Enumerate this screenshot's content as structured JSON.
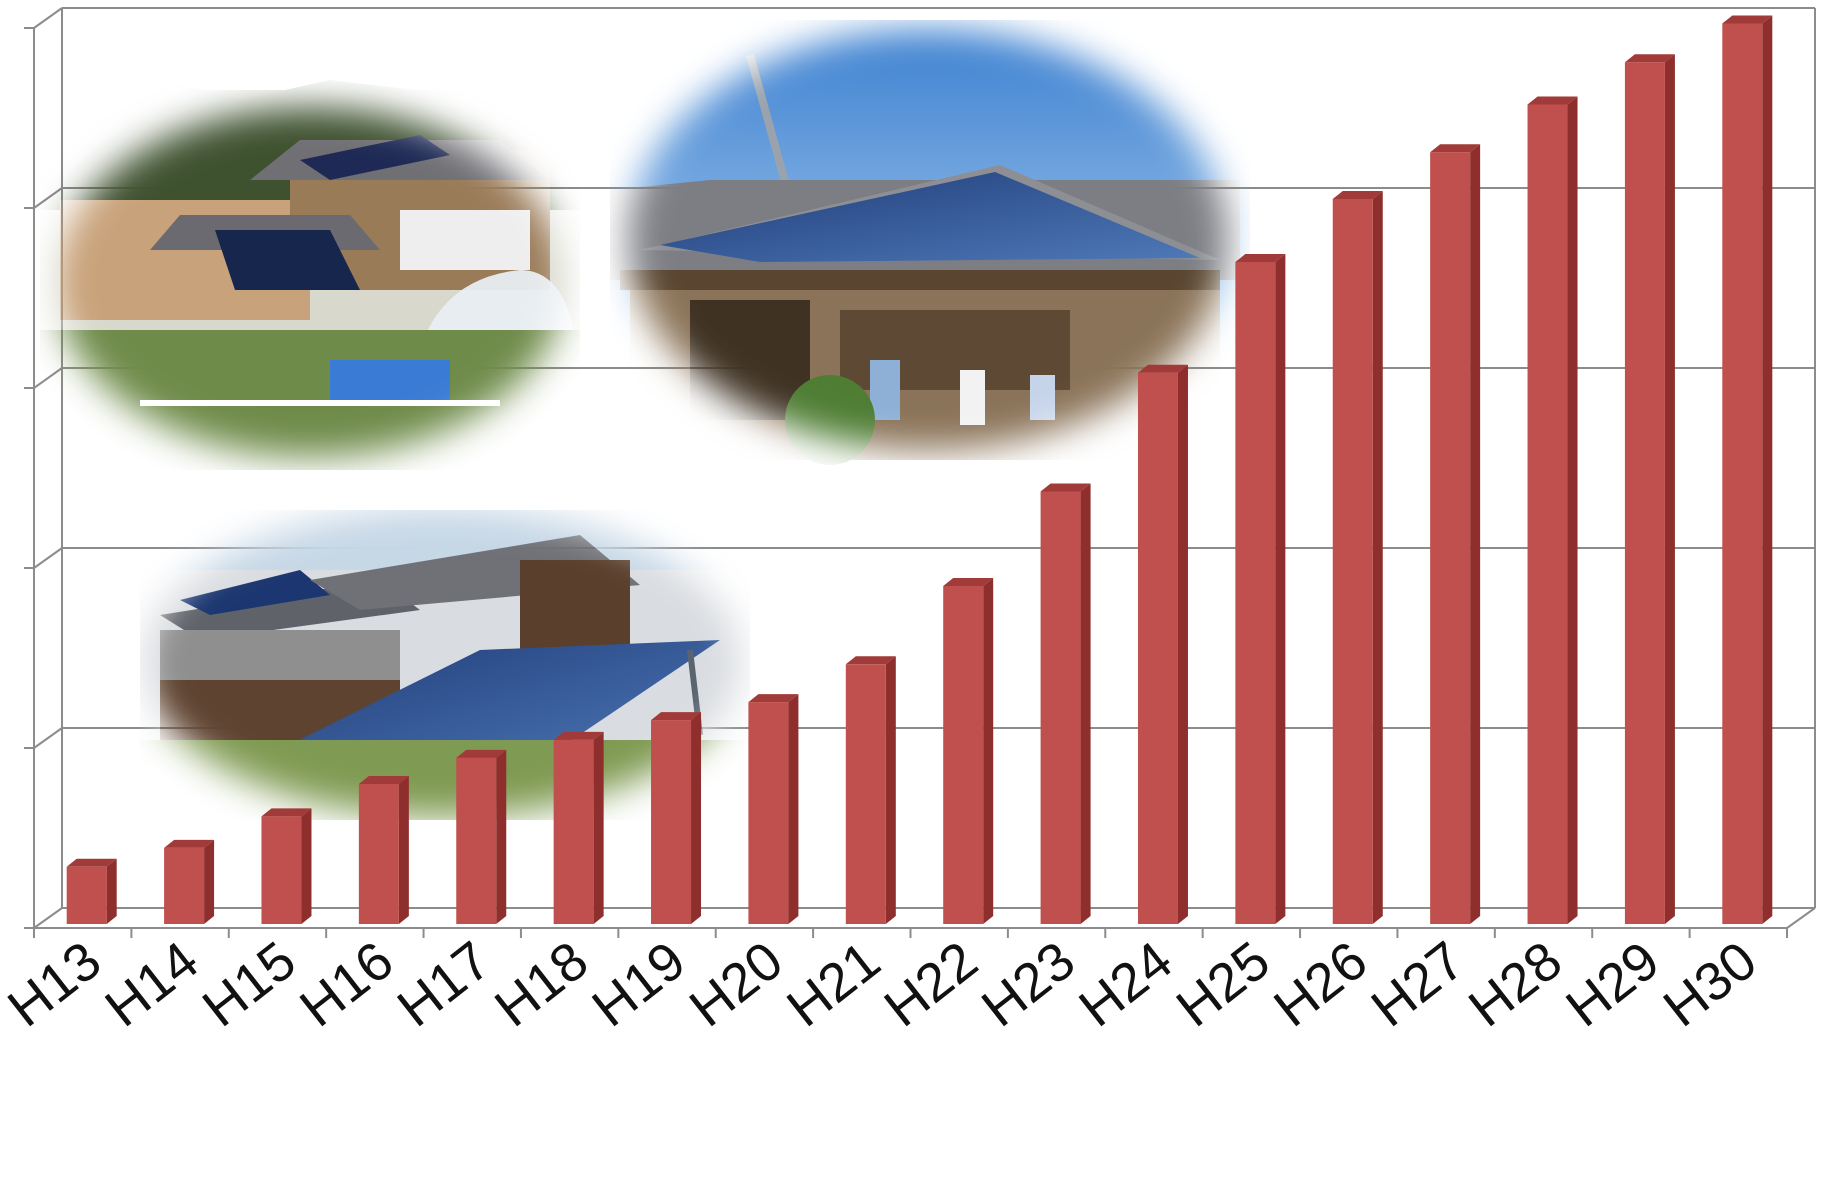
{
  "chart_data": {
    "type": "bar",
    "style": "3d-column",
    "categories": [
      "H13",
      "H14",
      "H15",
      "H16",
      "H17",
      "H18",
      "H19",
      "H20",
      "H21",
      "H22",
      "H23",
      "H24",
      "H25",
      "H26",
      "H27",
      "H28",
      "H29",
      "H30"
    ],
    "values": [
      6.8,
      8.9,
      12.4,
      16.0,
      18.9,
      20.9,
      23.1,
      25.1,
      29.3,
      38.0,
      48.5,
      61.7,
      74.0,
      81.0,
      86.2,
      91.5,
      96.2,
      100.5
    ],
    "ylim": [
      0,
      100
    ],
    "gridlines": true,
    "y_tick_labels": false,
    "bar_color": "#c0504d",
    "bar_side_color": "#8e2f2d",
    "bar_top_color": "#a03b39",
    "title": "",
    "xlabel": "",
    "ylabel": ""
  },
  "photos": [
    {
      "subject": "house-with-rooftop-solar-and-greenhouse"
    },
    {
      "subject": "traditional-house-with-solar-roof"
    },
    {
      "subject": "ground-mounted-solar-array-by-barn"
    }
  ]
}
